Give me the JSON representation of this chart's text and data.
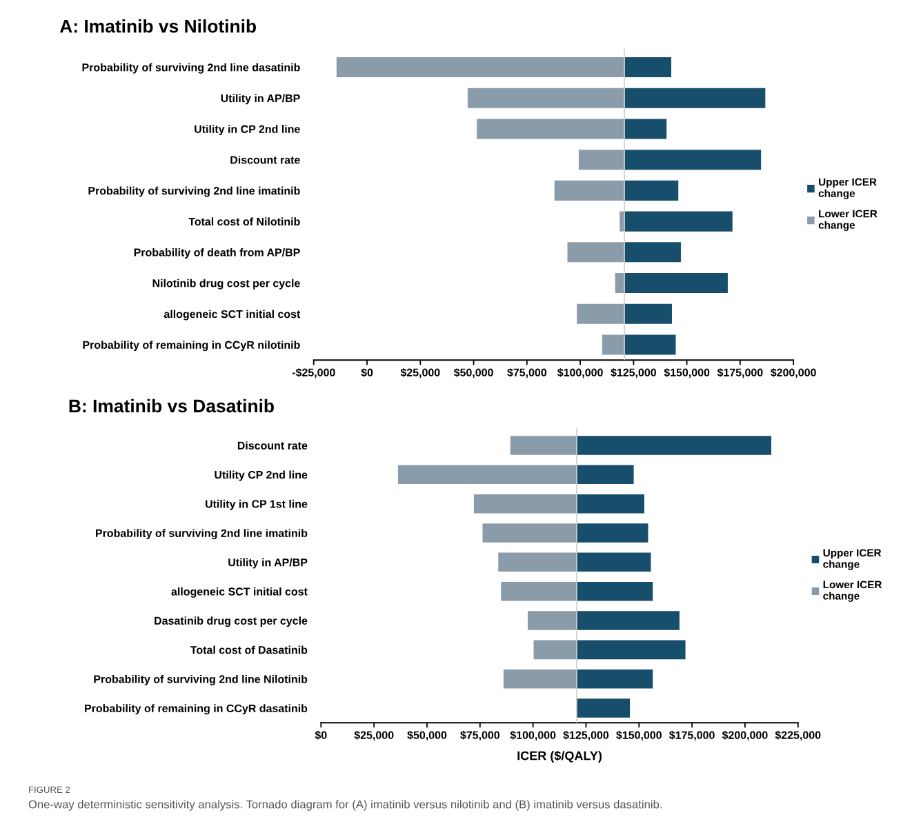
{
  "chart_data": [
    {
      "type": "bar",
      "orientation": "horizontal",
      "title": "A: Imatinib vs Nilotinib",
      "categories": [
        "Probability of surviving 2nd line dasatinib",
        "Utility in AP/BP",
        "Utility in CP 2nd line",
        "Discount rate",
        "Probability of surviving 2nd line imatinib",
        "Total cost of Nilotinib",
        "Probability of death from AP/BP",
        "Nilotinib drug cost per cycle",
        "allogeneic SCT initial cost",
        "Probability of remaining in CCyR nilotinib"
      ],
      "series": [
        {
          "name": "Upper ICER change",
          "color": "#164e6c",
          "base": [
            120700,
            120700,
            120700,
            120700,
            120700,
            120700,
            120700,
            120700,
            120700,
            120700
          ],
          "values": [
            22000,
            66100,
            19800,
            64100,
            25300,
            50700,
            26500,
            48500,
            22300,
            24100
          ]
        },
        {
          "name": "Lower ICER change",
          "color": "#8a9baa",
          "base": [
            -14300,
            47200,
            51500,
            99300,
            87900,
            118500,
            94000,
            116400,
            98400,
            110300
          ],
          "values": [
            135000,
            73500,
            69200,
            21400,
            32800,
            2200,
            26700,
            4300,
            22300,
            10400
          ]
        }
      ],
      "ref_lines": [
        {
          "axis": "x",
          "value": 120700,
          "color": "#d0d0d0"
        }
      ],
      "xlim": [
        -25000,
        200000
      ],
      "xticks": [
        {
          "value": -25000,
          "label": "-$25,000"
        },
        {
          "value": 0,
          "label": "$0"
        },
        {
          "value": 25000,
          "label": "$25,000"
        },
        {
          "value": 50000,
          "label": "$50,000"
        },
        {
          "value": 75000,
          "label": "$75,000"
        },
        {
          "value": 100000,
          "label": "$100,000"
        },
        {
          "value": 125000,
          "label": "$125,000"
        },
        {
          "value": 150000,
          "label": "$150,000"
        },
        {
          "value": 175000,
          "label": "$175,000"
        },
        {
          "value": 200000,
          "label": "$200,000"
        }
      ],
      "legend": "right",
      "grid": false
    },
    {
      "type": "bar",
      "orientation": "horizontal",
      "title": "B: Imatinib vs Dasatinib",
      "xlabel": "ICER ($/QALY)",
      "categories": [
        "Discount rate",
        "Utility CP 2nd line",
        "Utility in CP 1st line",
        "Probability of surviving 2nd line imatinib",
        "Utility in AP/BP",
        "allogeneic SCT initial cost",
        "Dasatinib drug cost per cycle",
        "Total cost of Dasatinib",
        "Probability of surviving 2nd line Nilotinib",
        "Probability of remaining in CCyR dasatinib"
      ],
      "series": [
        {
          "name": "Upper ICER change",
          "color": "#164e6c",
          "base": [
            120600,
            120600,
            120600,
            120600,
            120600,
            120600,
            120600,
            120600,
            120600,
            120600
          ],
          "values": [
            91800,
            26900,
            31900,
            33700,
            35000,
            35900,
            48500,
            51300,
            35900,
            25100
          ]
        },
        {
          "name": "Lower ICER change",
          "color": "#8a9baa",
          "base": [
            89300,
            36300,
            72100,
            76200,
            83600,
            84900,
            97500,
            100300,
            86100,
            null
          ],
          "values": [
            31300,
            84300,
            48500,
            44400,
            37000,
            35700,
            23100,
            20300,
            34500,
            null
          ]
        }
      ],
      "ref_lines": [
        {
          "axis": "x",
          "value": 120600,
          "color": "#d0d0d0"
        }
      ],
      "xlim": [
        0,
        225000
      ],
      "xticks": [
        {
          "value": 0,
          "label": "$0"
        },
        {
          "value": 25000,
          "label": "$25,000"
        },
        {
          "value": 50000,
          "label": "$50,000"
        },
        {
          "value": 75000,
          "label": "$75,000"
        },
        {
          "value": 100000,
          "label": "$100,000"
        },
        {
          "value": 125000,
          "label": "$125,000"
        },
        {
          "value": 150000,
          "label": "$150,000"
        },
        {
          "value": 175000,
          "label": "$175,000"
        },
        {
          "value": 200000,
          "label": "$200,000"
        },
        {
          "value": 225000,
          "label": "$225,000"
        }
      ],
      "legend": "right",
      "grid": false,
      "annotations": [
        "FIGURE 2",
        "One-way deterministic sensitivity analysis. Tornado diagram for (A) imatinib versus nilotinib and (B) imatinib versus dasatinib."
      ]
    }
  ]
}
